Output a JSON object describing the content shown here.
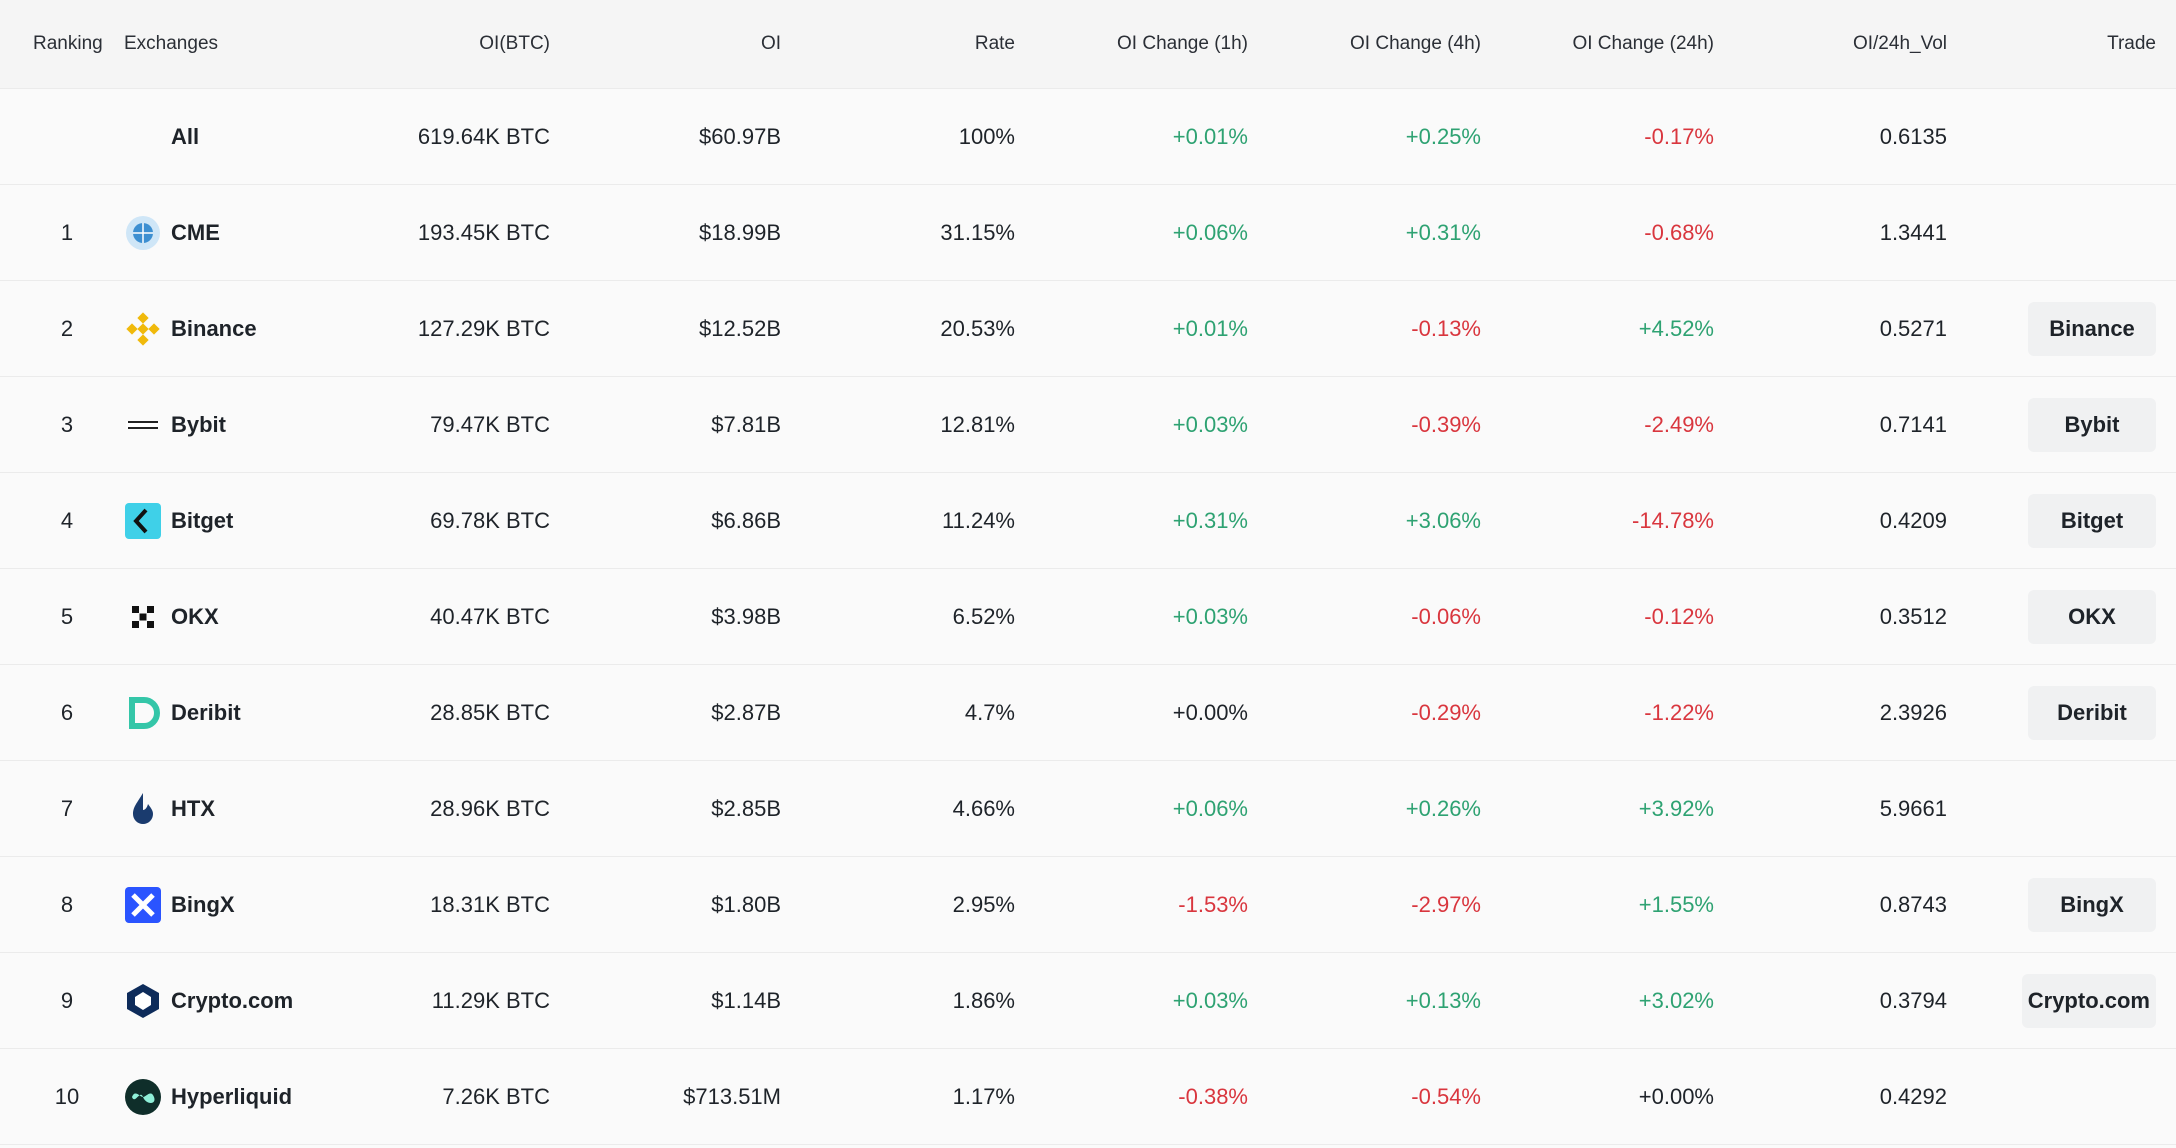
{
  "table": {
    "headers": [
      "Ranking",
      "Exchanges",
      "OI(BTC)",
      "OI",
      "Rate",
      "OI Change (1h)",
      "OI Change (4h)",
      "OI Change (24h)",
      "OI/24h_Vol",
      "Trade"
    ],
    "rows": [
      {
        "exchange": "All",
        "oi_btc": "619.64K BTC",
        "oi": "$60.97B",
        "rate": "100%",
        "ch1h": "+0.01%",
        "ch4h": "+0.25%",
        "ch24h": "-0.17%",
        "vol": "0.6135"
      },
      {
        "rank": "1",
        "exchange": "CME",
        "oi_btc": "193.45K BTC",
        "oi": "$18.99B",
        "rate": "31.15%",
        "ch1h": "+0.06%",
        "ch4h": "+0.31%",
        "ch24h": "-0.68%",
        "vol": "1.3441"
      },
      {
        "rank": "2",
        "exchange": "Binance",
        "oi_btc": "127.29K BTC",
        "oi": "$12.52B",
        "rate": "20.53%",
        "ch1h": "+0.01%",
        "ch4h": "-0.13%",
        "ch24h": "+4.52%",
        "vol": "0.5271",
        "trade": "Binance"
      },
      {
        "rank": "3",
        "exchange": "Bybit",
        "oi_btc": "79.47K BTC",
        "oi": "$7.81B",
        "rate": "12.81%",
        "ch1h": "+0.03%",
        "ch4h": "-0.39%",
        "ch24h": "-2.49%",
        "vol": "0.7141",
        "trade": "Bybit"
      },
      {
        "rank": "4",
        "exchange": "Bitget",
        "oi_btc": "69.78K BTC",
        "oi": "$6.86B",
        "rate": "11.24%",
        "ch1h": "+0.31%",
        "ch4h": "+3.06%",
        "ch24h": "-14.78%",
        "vol": "0.4209",
        "trade": "Bitget"
      },
      {
        "rank": "5",
        "exchange": "OKX",
        "oi_btc": "40.47K BTC",
        "oi": "$3.98B",
        "rate": "6.52%",
        "ch1h": "+0.03%",
        "ch4h": "-0.06%",
        "ch24h": "-0.12%",
        "vol": "0.3512",
        "trade": "OKX"
      },
      {
        "rank": "6",
        "exchange": "Deribit",
        "oi_btc": "28.85K BTC",
        "oi": "$2.87B",
        "rate": "4.7%",
        "ch1h": "+0.00%",
        "ch4h": "-0.29%",
        "ch24h": "-1.22%",
        "vol": "2.3926",
        "trade": "Deribit"
      },
      {
        "rank": "7",
        "exchange": "HTX",
        "oi_btc": "28.96K BTC",
        "oi": "$2.85B",
        "rate": "4.66%",
        "ch1h": "+0.06%",
        "ch4h": "+0.26%",
        "ch24h": "+3.92%",
        "vol": "5.9661"
      },
      {
        "rank": "8",
        "exchange": "BingX",
        "oi_btc": "18.31K BTC",
        "oi": "$1.80B",
        "rate": "2.95%",
        "ch1h": "-1.53%",
        "ch4h": "-2.97%",
        "ch24h": "+1.55%",
        "vol": "0.8743",
        "trade": "BingX"
      },
      {
        "rank": "9",
        "exchange": "Crypto.com",
        "oi_btc": "11.29K BTC",
        "oi": "$1.14B",
        "rate": "1.86%",
        "ch1h": "+0.03%",
        "ch4h": "+0.13%",
        "ch24h": "+3.02%",
        "vol": "0.3794",
        "trade": "Crypto.com"
      },
      {
        "rank": "10",
        "exchange": "Hyperliquid",
        "oi_btc": "7.26K BTC",
        "oi": "$713.51M",
        "rate": "1.17%",
        "ch1h": "-0.38%",
        "ch4h": "-0.54%",
        "ch24h": "+0.00%",
        "vol": "0.4292"
      }
    ]
  }
}
